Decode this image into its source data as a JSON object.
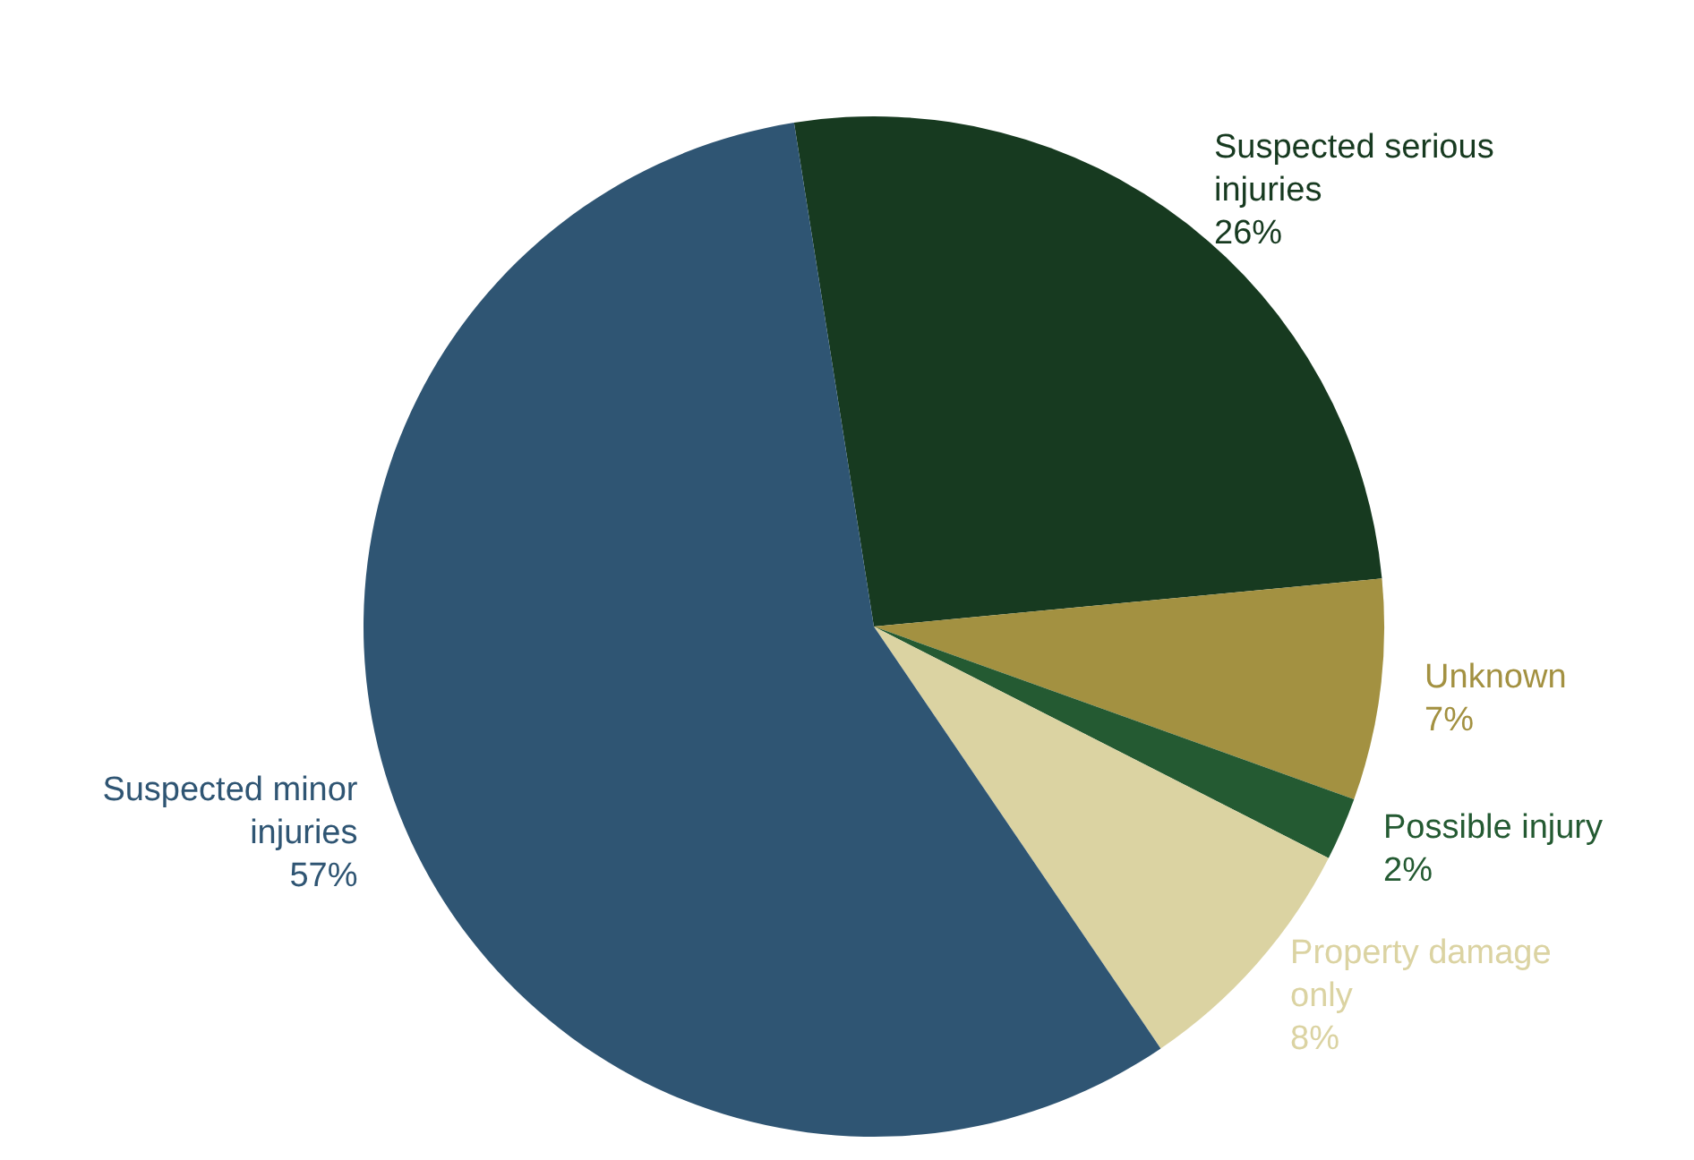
{
  "chart_data": {
    "type": "pie",
    "categories": [
      "Suspected serious injuries",
      "Unknown",
      "Possible injury",
      "Property damage only",
      "Suspected minor injuries"
    ],
    "values": [
      26,
      7,
      2,
      8,
      57
    ],
    "value_labels": [
      "26%",
      "7%",
      "2%",
      "8%",
      "57%"
    ],
    "colors": [
      "#173a20",
      "#a39141",
      "#245a32",
      "#dbd3a2",
      "#2f5573"
    ]
  }
}
